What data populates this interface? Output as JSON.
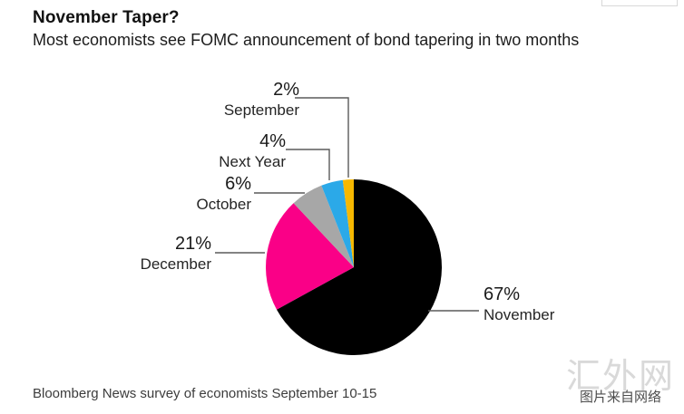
{
  "header": {
    "title": "November Taper?",
    "subtitle": "Most economists see FOMC announcement of bond tapering in two months"
  },
  "footer": {
    "source": "Bloomberg News survey of economists September 10-15"
  },
  "watermark": {
    "site": "汇外网",
    "caption": "图片来自网络"
  },
  "colors": {
    "november": "#000000",
    "december": "#fa0087",
    "october": "#a7a7a7",
    "next_year": "#2ba9e8",
    "september": "#f6b800",
    "leader_line": "#5a5a5a"
  },
  "chart_data": {
    "type": "pie",
    "title": "November Taper?",
    "subtitle": "Most economists see FOMC announcement of bond tapering in two months",
    "source": "Bloomberg News survey of economists September 10-15",
    "unit": "%",
    "start_angle_deg": 0,
    "direction": "clockwise",
    "legend_position": "outside-labels-with-leader-lines",
    "slices": [
      {
        "label": "November",
        "value": 67,
        "pct_label": "67%",
        "color": "#000000"
      },
      {
        "label": "December",
        "value": 21,
        "pct_label": "21%",
        "color": "#fa0087"
      },
      {
        "label": "October",
        "value": 6,
        "pct_label": "6%",
        "color": "#a7a7a7"
      },
      {
        "label": "Next Year",
        "value": 4,
        "pct_label": "4%",
        "color": "#2ba9e8"
      },
      {
        "label": "September",
        "value": 2,
        "pct_label": "2%",
        "color": "#f6b800"
      }
    ]
  }
}
